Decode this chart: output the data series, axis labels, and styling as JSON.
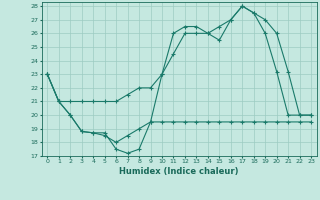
{
  "xlabel": "Humidex (Indice chaleur)",
  "bg_color": "#c5e8e0",
  "grid_color": "#9dccc2",
  "line_color": "#1a7a6a",
  "tick_color": "#1a6a5a",
  "xmin": 0,
  "xmax": 23,
  "ymin": 17,
  "ymax": 28,
  "line1_x": [
    0,
    1,
    2,
    3,
    4,
    5,
    6,
    7,
    8,
    9,
    10,
    11,
    12,
    13,
    14,
    15,
    16,
    17,
    18,
    19,
    20,
    21,
    22,
    23
  ],
  "line1_y": [
    23,
    21,
    20,
    18.8,
    18.7,
    18.7,
    17.5,
    17.2,
    17.5,
    19.5,
    23,
    26,
    26.5,
    26.5,
    26,
    25.5,
    27,
    28,
    27.5,
    26,
    23.2,
    20,
    20,
    20
  ],
  "line2_x": [
    0,
    1,
    2,
    3,
    4,
    5,
    6,
    7,
    8,
    9,
    10,
    11,
    12,
    13,
    14,
    15,
    16,
    17,
    18,
    19,
    20,
    21,
    22,
    23
  ],
  "line2_y": [
    23,
    21,
    21,
    21,
    21,
    21,
    21,
    21.5,
    22,
    22,
    23,
    24.5,
    26,
    26,
    26,
    26.5,
    27,
    28,
    27.5,
    27,
    26,
    23.2,
    20,
    20
  ],
  "line3_x": [
    0,
    1,
    2,
    3,
    4,
    5,
    6,
    7,
    8,
    9,
    10,
    11,
    12,
    13,
    14,
    15,
    16,
    17,
    18,
    19,
    20,
    21,
    22,
    23
  ],
  "line3_y": [
    23,
    21,
    20,
    18.8,
    18.7,
    18.5,
    18,
    18.5,
    19,
    19.5,
    19.5,
    19.5,
    19.5,
    19.5,
    19.5,
    19.5,
    19.5,
    19.5,
    19.5,
    19.5,
    19.5,
    19.5,
    19.5,
    19.5
  ]
}
